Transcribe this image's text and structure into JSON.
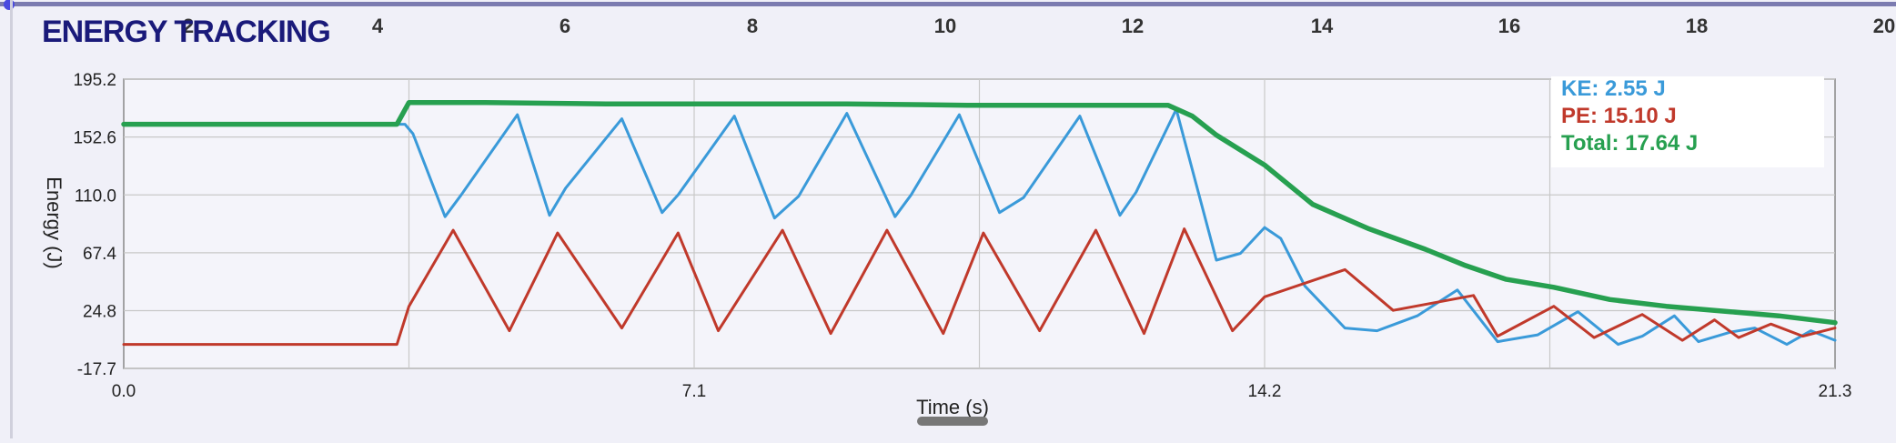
{
  "title": "ENERGY TRACKING",
  "top_ruler": {
    "ticks": [
      "2",
      "4",
      "6",
      "8",
      "10",
      "12",
      "14",
      "16",
      "18",
      "20"
    ]
  },
  "readout": {
    "ke": "KE: 2.55 J",
    "pe": "PE: 15.10 J",
    "total": "Total: 17.64 J"
  },
  "colors": {
    "background": "#f0f0f8",
    "title": "#1a1a7a",
    "ke": "#3a9ad9",
    "pe": "#c0392b",
    "total": "#27a050",
    "grid": "#c8c8c8",
    "frame": "#888888"
  },
  "chart_data": {
    "type": "line",
    "title": "ENERGY TRACKING",
    "xlabel": "Time (s)",
    "ylabel": "Energy (J)",
    "xlim": [
      0,
      21.3
    ],
    "ylim": [
      -17.7,
      195.2
    ],
    "x_ticks": [
      "0.0",
      "7.1",
      "14.2",
      "21.3"
    ],
    "x_tick_values": [
      0,
      7.1,
      14.2,
      21.3
    ],
    "y_ticks": [
      "195.2",
      "152.6",
      "110.0",
      "67.4",
      "24.8",
      "-17.7"
    ],
    "y_tick_values": [
      195.2,
      152.6,
      110.0,
      67.4,
      24.8,
      -17.7
    ],
    "grid": true,
    "legend": "top-right",
    "series": [
      {
        "name": "KE",
        "color": "#3a9ad9",
        "x": [
          0,
          3.5,
          3.6,
          4.0,
          4.2,
          4.9,
          5.3,
          5.5,
          6.2,
          6.7,
          6.9,
          7.6,
          8.1,
          8.4,
          9.0,
          9.6,
          9.8,
          10.4,
          10.9,
          11.2,
          11.9,
          12.4,
          12.6,
          13.1,
          13.6,
          13.9,
          14.2,
          14.4,
          14.7,
          15.2,
          15.6,
          16.1,
          16.6,
          17.1,
          17.6,
          18.1,
          18.6,
          18.9,
          19.3,
          19.6,
          20.0,
          20.3,
          20.7,
          21.0,
          21.3
        ],
        "values": [
          162,
          162,
          155,
          94,
          110,
          169,
          95,
          115,
          166,
          97,
          110,
          168,
          93,
          109,
          170,
          94,
          110,
          169,
          97,
          108,
          168,
          95,
          112,
          173,
          62,
          67,
          86,
          78,
          43,
          12,
          10,
          21,
          40,
          2,
          7,
          24,
          0,
          6,
          21,
          2,
          9,
          12,
          0,
          10,
          3
        ]
      },
      {
        "name": "PE",
        "color": "#c0392b",
        "x": [
          0,
          3.4,
          3.55,
          4.1,
          4.8,
          5.4,
          6.2,
          6.9,
          7.4,
          8.2,
          8.8,
          9.5,
          10.2,
          10.7,
          11.4,
          12.1,
          12.7,
          13.2,
          13.8,
          14.2,
          15.2,
          15.8,
          16.8,
          17.1,
          17.8,
          18.3,
          18.9,
          19.4,
          19.8,
          20.1,
          20.5,
          20.9,
          21.3
        ],
        "values": [
          0,
          0,
          28,
          84,
          10,
          82,
          12,
          82,
          10,
          84,
          8,
          84,
          8,
          82,
          10,
          84,
          8,
          85,
          10,
          35,
          55,
          25,
          36,
          6,
          28,
          5,
          22,
          3,
          18,
          5,
          15,
          6,
          12
        ]
      },
      {
        "name": "Total",
        "color": "#27a050",
        "x": [
          0,
          3.4,
          3.55,
          4.5,
          6.0,
          7.5,
          9.0,
          10.5,
          12.0,
          13.0,
          13.3,
          13.6,
          14.2,
          14.8,
          15.5,
          16.2,
          16.7,
          17.2,
          17.8,
          18.5,
          19.2,
          20.0,
          20.6,
          21.3
        ],
        "values": [
          162,
          162,
          178,
          178,
          177,
          177,
          177,
          176,
          176,
          176,
          168,
          154,
          132,
          103,
          85,
          70,
          58,
          48,
          42,
          33,
          28,
          24,
          21,
          16
        ]
      }
    ]
  }
}
